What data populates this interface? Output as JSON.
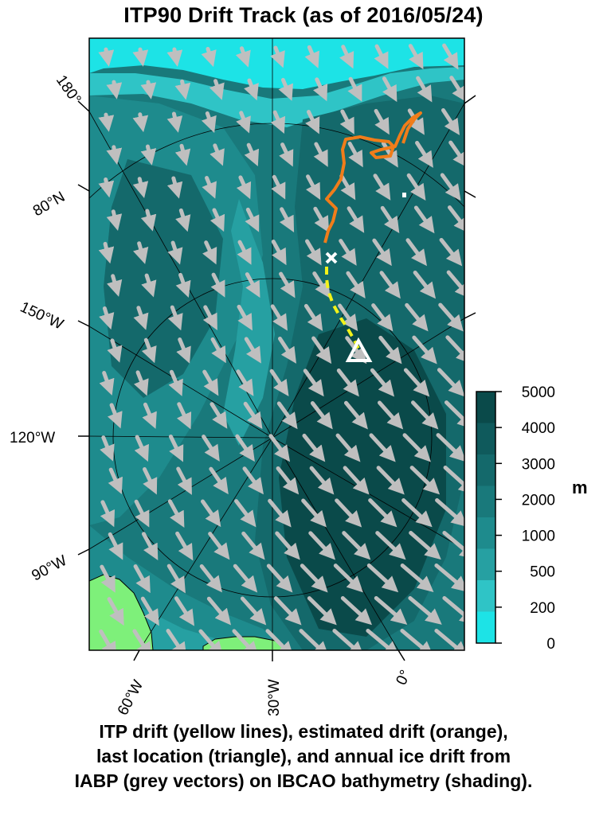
{
  "title": "ITP90 Drift Track (as of 2016/05/24)",
  "caption": [
    "ITP drift (yellow lines), estimated drift (orange),",
    "last location (triangle), and annual ice drift from",
    "IABP (grey vectors) on IBCAO bathymetry (shading)."
  ],
  "left_labels": [
    "180°",
    "80°N",
    "150°W",
    "120°W",
    "90°W"
  ],
  "bottom_labels": [
    "60°W",
    "30°W",
    "0°"
  ],
  "colorbar": {
    "unit": "m",
    "ticks": [
      "5000",
      "4000",
      "3000",
      "2000",
      "1000",
      "500",
      "200",
      "0"
    ],
    "colors": [
      "#0a4a4a",
      "#0f5a5c",
      "#14696b",
      "#19797b",
      "#1e8b8d",
      "#26a0a2",
      "#2fc4c6",
      "#1de3e6"
    ]
  },
  "colors": {
    "yellow_track": "#f2f21a",
    "orange_track": "#f07d1a",
    "vectors": "#bfbfbf",
    "land": "#7ef07a",
    "shallow": "#1de3e6",
    "deep": "#0a4a4a"
  },
  "icons": {
    "last_location": "triangle-icon",
    "start": "x-mark-icon"
  }
}
